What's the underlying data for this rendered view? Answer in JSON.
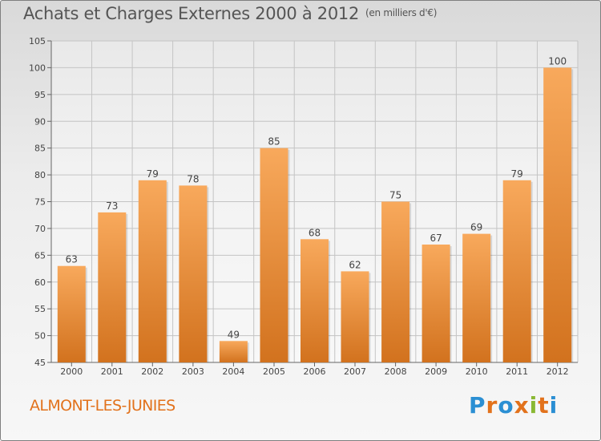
{
  "header": {
    "title": "Achats et Charges Externes 2000 à 2012",
    "unit": "(en milliers d'€)"
  },
  "footer": {
    "commune": "ALMONT-LES-JUNIES",
    "logo": "Proxiti"
  },
  "colors": {
    "bar_light": "#f8a95c",
    "bar_dark": "#d2721e",
    "commune": "#e2721c",
    "logo": [
      "#2b8fd3",
      "#e2721c",
      "#2b8fd3",
      "#e2721c",
      "#8ab833",
      "#e2721c",
      "#2b8fd3"
    ]
  },
  "chart_data": {
    "type": "bar",
    "title": "Achats et Charges Externes 2000 à 2012",
    "categories": [
      "2000",
      "2001",
      "2002",
      "2003",
      "2004",
      "2005",
      "2006",
      "2007",
      "2008",
      "2009",
      "2010",
      "2011",
      "2012"
    ],
    "values": [
      63,
      73,
      79,
      78,
      49,
      85,
      68,
      62,
      75,
      67,
      69,
      79,
      100
    ],
    "yticks": [
      45,
      50,
      55,
      60,
      65,
      70,
      75,
      80,
      85,
      90,
      95,
      100,
      105
    ],
    "ylim": [
      45,
      105
    ],
    "xlabel": "",
    "ylabel": "",
    "grid": true,
    "data_labels": true
  }
}
